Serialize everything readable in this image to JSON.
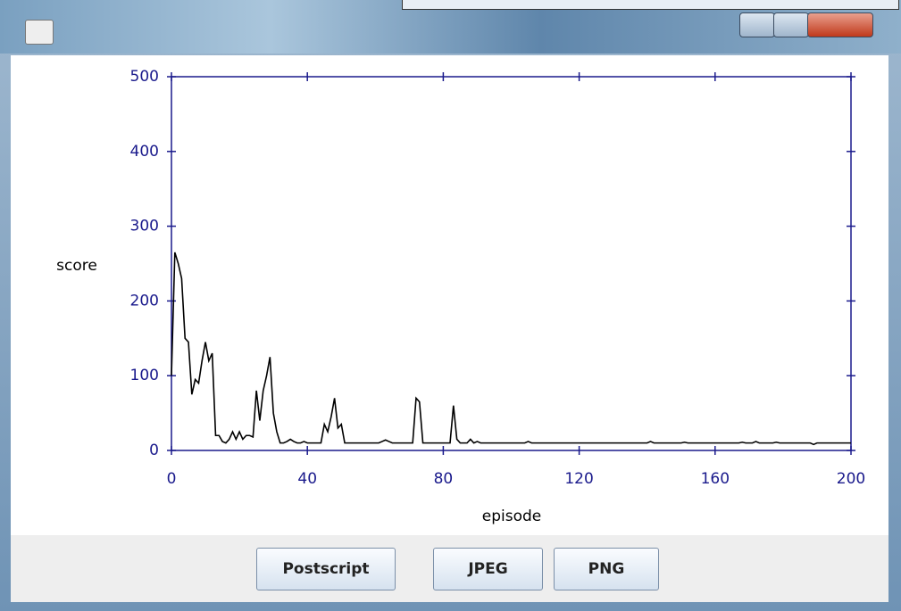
{
  "window": {
    "buttons": [
      "Postscript",
      "JPEG",
      "PNG"
    ]
  },
  "chart_data": {
    "type": "line",
    "xlabel": "episode",
    "ylabel": "score",
    "x": [
      0,
      1,
      2,
      3,
      4,
      5,
      6,
      7,
      8,
      9,
      10,
      11,
      12,
      13,
      14,
      15,
      16,
      17,
      18,
      19,
      20,
      21,
      22,
      23,
      24,
      25,
      26,
      27,
      28,
      29,
      30,
      31,
      32,
      33,
      34,
      35,
      36,
      37,
      38,
      39,
      40,
      41,
      42,
      43,
      44,
      45,
      46,
      47,
      48,
      49,
      50,
      51,
      52,
      53,
      54,
      55,
      56,
      57,
      58,
      59,
      60,
      61,
      62,
      63,
      64,
      65,
      66,
      67,
      68,
      69,
      70,
      71,
      72,
      73,
      74,
      75,
      76,
      77,
      78,
      79,
      80,
      81,
      82,
      83,
      84,
      85,
      86,
      87,
      88,
      89,
      90,
      91,
      92,
      93,
      94,
      95,
      96,
      97,
      98,
      99,
      100,
      101,
      102,
      103,
      104,
      105,
      106,
      107,
      108,
      109,
      110,
      111,
      112,
      113,
      114,
      115,
      116,
      117,
      118,
      119,
      120,
      121,
      122,
      123,
      124,
      125,
      126,
      127,
      128,
      129,
      130,
      131,
      132,
      133,
      134,
      135,
      136,
      137,
      138,
      139,
      140,
      141,
      142,
      143,
      144,
      145,
      146,
      147,
      148,
      149,
      150,
      151,
      152,
      153,
      154,
      155,
      156,
      157,
      158,
      159,
      160,
      161,
      162,
      163,
      164,
      165,
      166,
      167,
      168,
      169,
      170,
      171,
      172,
      173,
      174,
      175,
      176,
      177,
      178,
      179,
      180,
      181,
      182,
      183,
      184,
      185,
      186,
      187,
      188,
      189,
      190,
      191,
      192,
      193,
      194,
      195,
      196,
      197,
      198,
      199,
      200
    ],
    "values": [
      100,
      265,
      250,
      230,
      150,
      145,
      75,
      95,
      90,
      120,
      145,
      120,
      130,
      20,
      20,
      12,
      10,
      15,
      25,
      15,
      25,
      15,
      20,
      20,
      18,
      80,
      40,
      80,
      100,
      125,
      50,
      25,
      10,
      10,
      12,
      15,
      12,
      10,
      10,
      12,
      10,
      10,
      10,
      10,
      10,
      35,
      25,
      45,
      70,
      30,
      35,
      10,
      10,
      10,
      10,
      10,
      10,
      10,
      10,
      10,
      10,
      10,
      12,
      14,
      12,
      10,
      10,
      10,
      10,
      10,
      10,
      10,
      70,
      65,
      10,
      10,
      10,
      10,
      10,
      10,
      10,
      10,
      10,
      60,
      15,
      10,
      10,
      10,
      15,
      10,
      12,
      10,
      10,
      10,
      10,
      10,
      10,
      10,
      10,
      10,
      10,
      10,
      10,
      10,
      10,
      12,
      10,
      10,
      10,
      10,
      10,
      10,
      10,
      10,
      10,
      10,
      10,
      10,
      10,
      10,
      10,
      10,
      10,
      10,
      10,
      10,
      10,
      10,
      10,
      10,
      10,
      10,
      10,
      10,
      10,
      10,
      10,
      10,
      10,
      10,
      10,
      12,
      10,
      10,
      10,
      10,
      10,
      10,
      10,
      10,
      10,
      11,
      10,
      10,
      10,
      10,
      10,
      10,
      10,
      10,
      10,
      10,
      10,
      10,
      10,
      10,
      10,
      10,
      11,
      10,
      10,
      10,
      12,
      10,
      10,
      10,
      10,
      10,
      11,
      10,
      10,
      10,
      10,
      10,
      10,
      10,
      10,
      10,
      10,
      8,
      10,
      10,
      10,
      10,
      10,
      10,
      10,
      10,
      10,
      10,
      10
    ],
    "color": "#000000",
    "axis_color": "#1a1a8c",
    "xlim": [
      0,
      200
    ],
    "xticks": [
      0,
      40,
      80,
      120,
      160,
      200
    ],
    "ylim": [
      0,
      500
    ],
    "yticks": [
      0,
      100,
      200,
      300,
      400,
      500
    ]
  }
}
